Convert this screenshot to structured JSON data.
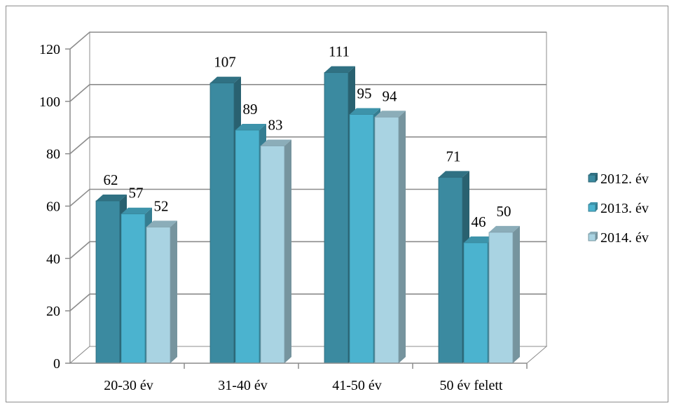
{
  "chart_data": {
    "type": "bar",
    "categories": [
      "20-30 év",
      "31-40 év",
      "41-50 év",
      "50 év felett"
    ],
    "series": [
      {
        "name": "2012. év",
        "values": [
          62,
          107,
          111,
          71
        ],
        "color": "#3b8aa0"
      },
      {
        "name": "2013. év",
        "values": [
          57,
          89,
          95,
          46
        ],
        "color": "#4bb3cf"
      },
      {
        "name": "2014. év",
        "values": [
          52,
          83,
          94,
          50
        ],
        "color": "#a9d3e2"
      }
    ],
    "yticks": [
      "0",
      "20",
      "40",
      "60",
      "80",
      "100",
      "120"
    ],
    "ylim": [
      0,
      120
    ],
    "grid": true,
    "legend_position": "right",
    "title": "",
    "xlabel": "",
    "ylabel": ""
  }
}
